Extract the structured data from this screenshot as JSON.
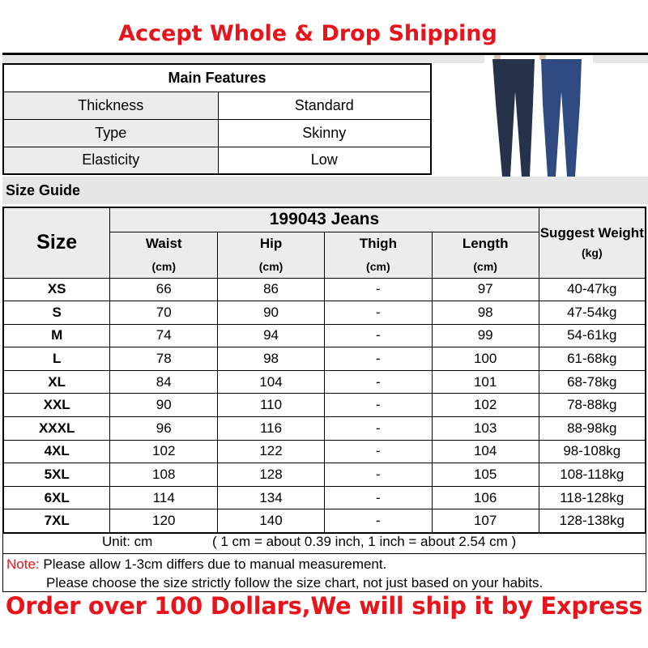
{
  "title": "Accept Whole & Drop Shipping",
  "features": {
    "header": "Main Features",
    "rows": [
      [
        "Thickness",
        "Standard"
      ],
      [
        "Type",
        "Skinny"
      ],
      [
        "Elasticity",
        "Low"
      ]
    ]
  },
  "size_guide_label": "Size Guide",
  "size_table": {
    "size_header": "Size",
    "product": "199043 Jeans",
    "weight_header": "Suggest Weight",
    "weight_unit": "(kg)",
    "columns": [
      {
        "name": "Waist",
        "unit": "(cm)"
      },
      {
        "name": "Hip",
        "unit": "(cm)"
      },
      {
        "name": "Thigh",
        "unit": "(cm)"
      },
      {
        "name": "Length",
        "unit": "(cm)"
      }
    ],
    "rows": [
      [
        "XS",
        "66",
        "86",
        "-",
        "97",
        "40-47kg"
      ],
      [
        "S",
        "70",
        "90",
        "-",
        "98",
        "47-54kg"
      ],
      [
        "M",
        "74",
        "94",
        "-",
        "99",
        "54-61kg"
      ],
      [
        "L",
        "78",
        "98",
        "-",
        "100",
        "61-68kg"
      ],
      [
        "XL",
        "84",
        "104",
        "-",
        "101",
        "68-78kg"
      ],
      [
        "XXL",
        "90",
        "110",
        "-",
        "102",
        "78-88kg"
      ],
      [
        "XXXL",
        "96",
        "116",
        "-",
        "103",
        "88-98kg"
      ],
      [
        "4XL",
        "102",
        "122",
        "-",
        "104",
        "98-108kg"
      ],
      [
        "5XL",
        "108",
        "128",
        "-",
        "105",
        "108-118kg"
      ],
      [
        "6XL",
        "114",
        "134",
        "-",
        "106",
        "118-128kg"
      ],
      [
        "7XL",
        "120",
        "140",
        "-",
        "107",
        "128-138kg"
      ]
    ]
  },
  "unit_label": "Unit: cm",
  "conversion": "( 1 cm = about 0.39 inch,  1 inch = about 2.54 cm )",
  "note": {
    "label": "Note:",
    "line1": "Please allow 1-3cm differs due to manual measurement.",
    "line2": "Please choose the size strictly follow the size chart, not just based on your habits."
  },
  "bottom_banner": "Order over 100 Dollars,We will ship it by Express",
  "colors": {
    "accent_red": "#e8141b",
    "dark_denim": "#26324a",
    "blue_denim": "#2f4a80"
  }
}
